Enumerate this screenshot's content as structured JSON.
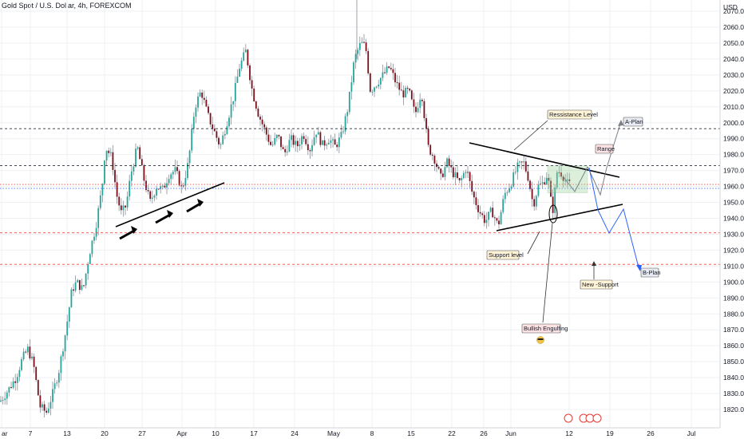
{
  "header": {
    "title": "Gold Spot / U.S. Dollar, 4h, FOREXCOM"
  },
  "axis": {
    "currency": "USD"
  },
  "colors": {
    "up": "#26a69a",
    "down": "#7a0f1a",
    "wick": "#8a8f99",
    "grid": "#eef0f3",
    "black_dash": "#131722",
    "red_dash": "#e53935",
    "blue": "#2962ff",
    "annotation_bg": "#fff3d6",
    "range_fill": "#9ad29a"
  },
  "chart_data": {
    "type": "candlestick",
    "title": "Gold Spot / U.S. Dollar, 4h, FOREXCOM",
    "ylabel": "USD",
    "ylim": [
      1815,
      2080
    ],
    "y_ticks": [
      1820,
      1830,
      1840,
      1850,
      1860,
      1870,
      1880,
      1890,
      1900,
      1910,
      1920,
      1930,
      1940,
      1950,
      1960,
      1970,
      1980,
      1990,
      2000,
      2010,
      2020,
      2030,
      2040,
      2050,
      2060,
      2070
    ],
    "x_labels": [
      "ar",
      "7",
      "13",
      "20",
      "27",
      "Apr",
      "10",
      "17",
      "24",
      "May",
      "8",
      "15",
      "22",
      "26",
      "Jun",
      "12",
      "19",
      "26",
      "Jul"
    ],
    "price_path": [
      [
        0,
        1825
      ],
      [
        10,
        1832
      ],
      [
        20,
        1840
      ],
      [
        28,
        1852
      ],
      [
        35,
        1858
      ],
      [
        42,
        1848
      ],
      [
        50,
        1822
      ],
      [
        58,
        1818
      ],
      [
        66,
        1830
      ],
      [
        74,
        1845
      ],
      [
        82,
        1868
      ],
      [
        90,
        1895
      ],
      [
        96,
        1900
      ],
      [
        104,
        1895
      ],
      [
        112,
        1918
      ],
      [
        120,
        1935
      ],
      [
        128,
        1960
      ],
      [
        132,
        1985
      ],
      [
        140,
        1978
      ],
      [
        146,
        1955
      ],
      [
        152,
        1943
      ],
      [
        158,
        1948
      ],
      [
        164,
        1968
      ],
      [
        172,
        1985
      ],
      [
        180,
        1965
      ],
      [
        188,
        1950
      ],
      [
        196,
        1960
      ],
      [
        204,
        1958
      ],
      [
        212,
        1968
      ],
      [
        220,
        1970
      ],
      [
        228,
        1958
      ],
      [
        236,
        1975
      ],
      [
        244,
        2010
      ],
      [
        252,
        2020
      ],
      [
        260,
        2005
      ],
      [
        268,
        1995
      ],
      [
        276,
        1985
      ],
      [
        284,
        2000
      ],
      [
        292,
        2015
      ],
      [
        300,
        2035
      ],
      [
        308,
        2045
      ],
      [
        316,
        2020
      ],
      [
        324,
        2005
      ],
      [
        332,
        1995
      ],
      [
        340,
        1985
      ],
      [
        348,
        1992
      ],
      [
        356,
        1980
      ],
      [
        364,
        1990
      ],
      [
        372,
        1985
      ],
      [
        380,
        1993
      ],
      [
        388,
        1983
      ],
      [
        396,
        1995
      ],
      [
        404,
        1986
      ],
      [
        412,
        1990
      ],
      [
        420,
        1985
      ],
      [
        428,
        1992
      ],
      [
        436,
        2010
      ],
      [
        444,
        2040
      ],
      [
        452,
        2050
      ],
      [
        458,
        2048
      ],
      [
        464,
        2020
      ],
      [
        472,
        2025
      ],
      [
        480,
        2030
      ],
      [
        488,
        2035
      ],
      [
        496,
        2025
      ],
      [
        504,
        2018
      ],
      [
        512,
        2020
      ],
      [
        520,
        2005
      ],
      [
        528,
        2020
      ],
      [
        536,
        1985
      ],
      [
        544,
        1978
      ],
      [
        552,
        1965
      ],
      [
        560,
        1975
      ],
      [
        568,
        1968
      ],
      [
        576,
        1962
      ],
      [
        584,
        1972
      ],
      [
        592,
        1955
      ],
      [
        600,
        1945
      ],
      [
        608,
        1938
      ],
      [
        616,
        1945
      ],
      [
        624,
        1935
      ],
      [
        632,
        1955
      ],
      [
        640,
        1962
      ],
      [
        648,
        1972
      ],
      [
        656,
        1975
      ],
      [
        662,
        1965
      ],
      [
        668,
        1948
      ],
      [
        674,
        1960
      ],
      [
        680,
        1962
      ],
      [
        686,
        1968
      ],
      [
        692,
        1943
      ],
      [
        698,
        1970
      ],
      [
        704,
        1968
      ],
      [
        710,
        1962
      ],
      [
        716,
        1961
      ]
    ],
    "horizontal_levels": [
      {
        "price": 1996.26,
        "style": "dash",
        "color": "#131722",
        "label": "1996.26",
        "tag_bg": "#131722"
      },
      {
        "price": 1973.02,
        "style": "dash",
        "color": "#131722",
        "label": "1973.02",
        "tag_bg": "#131722"
      },
      {
        "price": 1961.27,
        "style": "dot",
        "color": "#e53935",
        "label": "1961.27",
        "tag_bg": "#e53935"
      },
      {
        "price": 1958.78,
        "style": "dot",
        "color": "#2962ff",
        "label": "1958.78",
        "tag_bg": "#2962ff"
      },
      {
        "price": 1930.89,
        "style": "dash",
        "color": "#e53935",
        "label": "1930.89",
        "tag_bg": "#c62828"
      },
      {
        "price": 1911.11,
        "style": "dash",
        "color": "#e53935",
        "label": "1911.11",
        "tag_bg": "#c62828"
      }
    ],
    "annotations": [
      {
        "text": "Ressistance Level",
        "kind": "box"
      },
      {
        "text": "Range",
        "kind": "box"
      },
      {
        "text": "A-Plan",
        "kind": "box"
      },
      {
        "text": "Support level",
        "kind": "box"
      },
      {
        "text": "New -Support",
        "kind": "box"
      },
      {
        "text": "B-Plan",
        "kind": "box"
      },
      {
        "text": "Bullish Engulfing",
        "kind": "box"
      }
    ]
  }
}
